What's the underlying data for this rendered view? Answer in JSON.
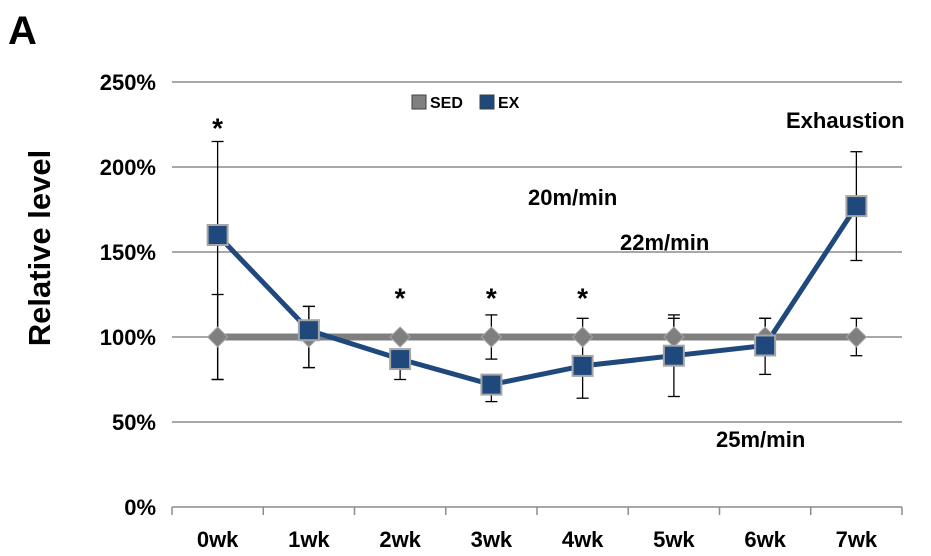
{
  "panel_label": "A",
  "chart_data": {
    "type": "line",
    "title": "",
    "xlabel": "",
    "ylabel": "Relative level",
    "categories": [
      "0wk",
      "1wk",
      "2wk",
      "3wk",
      "4wk",
      "5wk",
      "6wk",
      "7wk"
    ],
    "ylim": [
      0,
      250
    ],
    "yticks": [
      "0%",
      "50%",
      "100%",
      "150%",
      "200%",
      "250%"
    ],
    "grid": "horizontal",
    "legend_position": "top-center",
    "series": [
      {
        "name": "SED",
        "marker": "diamond",
        "color": "#7f7f7f",
        "values": [
          100,
          100,
          100,
          100,
          100,
          100,
          100,
          100
        ],
        "error_up": [
          25,
          18,
          0,
          13,
          11,
          13,
          11,
          11
        ],
        "error_down": [
          25,
          18,
          0,
          13,
          11,
          0,
          11,
          11
        ]
      },
      {
        "name": "EX",
        "marker": "square",
        "color": "#1f497d",
        "values": [
          160,
          104,
          87,
          72,
          83,
          89,
          95,
          177
        ],
        "error_up": [
          55,
          14,
          0,
          0,
          0,
          22,
          16,
          32
        ],
        "error_down": [
          85,
          22,
          12,
          10,
          19,
          24,
          17,
          32
        ]
      }
    ],
    "significance_marks": [
      {
        "category": "0wk",
        "label": "*",
        "y": 228
      },
      {
        "category": "2wk",
        "label": "*",
        "y": 128
      },
      {
        "category": "3wk",
        "label": "*",
        "y": 128
      },
      {
        "category": "4wk",
        "label": "*",
        "y": 128
      }
    ],
    "annotations": [
      {
        "text": "20m/min"
      },
      {
        "text": "22m/min"
      },
      {
        "text": "25m/min"
      },
      {
        "text": "Exhaustion"
      }
    ]
  }
}
